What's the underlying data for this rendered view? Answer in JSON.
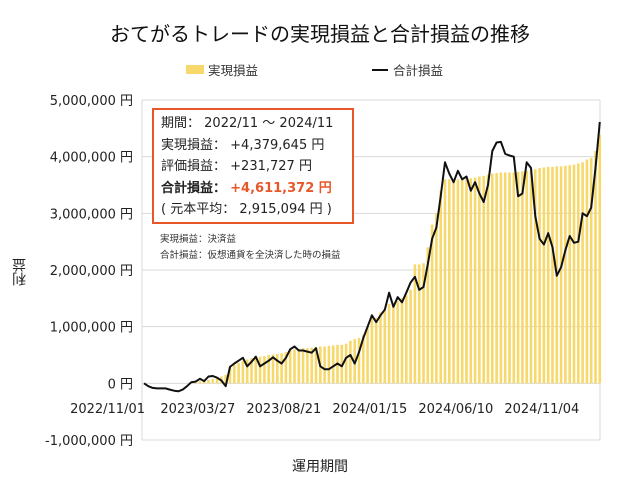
{
  "chart_data": {
    "type": "bar+line",
    "title": "おてがるトレードの実現損益と合計損益の推移",
    "xlabel": "運用期間",
    "ylabel": "利益",
    "ylim": [
      -1000000,
      5000000
    ],
    "yticks": [
      -1000000,
      0,
      1000000,
      2000000,
      3000000,
      4000000,
      5000000
    ],
    "ytick_labels": [
      "-1,000,000 円",
      "0 円",
      "1,000,000 円",
      "2,000,000 円",
      "3,000,000 円",
      "4,000,000 円",
      "5,000,000 円"
    ],
    "x_frequency": "weekly",
    "x_start": "2022/11/01",
    "xtick_labels": [
      {
        "label": "2022/11/01",
        "week": 0
      },
      {
        "label": "2023/03/27",
        "week": 21
      },
      {
        "label": "2023/08/21",
        "week": 41
      },
      {
        "label": "2024/01/15",
        "week": 61
      },
      {
        "label": "2024/06/10",
        "week": 81
      },
      {
        "label": "2024/11/04",
        "week": 101
      }
    ],
    "grid": true,
    "legend_position": "top",
    "colors": {
      "realized": "#F7D96B",
      "total": "#111111",
      "box_border": "#E8572A"
    },
    "series": [
      {
        "name": "実現損益",
        "type": "bar",
        "values": [
          0,
          0,
          0,
          0,
          0,
          0,
          0,
          0,
          0,
          0,
          0,
          20000,
          30000,
          40000,
          50000,
          60000,
          80000,
          100000,
          120000,
          150000,
          280000,
          330000,
          360000,
          400000,
          420000,
          440000,
          460000,
          470000,
          480000,
          500000,
          510000,
          520000,
          530000,
          550000,
          580000,
          600000,
          610000,
          620000,
          620000,
          630000,
          640000,
          650000,
          650000,
          660000,
          670000,
          680000,
          680000,
          700000,
          750000,
          780000,
          800000,
          850000,
          1000000,
          1150000,
          1150000,
          1250000,
          1300000,
          1400000,
          1400000,
          1450000,
          1500000,
          1550000,
          1650000,
          2100000,
          2100000,
          2120000,
          2400000,
          2800000,
          3000000,
          3400000,
          3600000,
          3600000,
          3600000,
          3600000,
          3600000,
          3600000,
          3620000,
          3630000,
          3650000,
          3660000,
          3680000,
          3700000,
          3710000,
          3720000,
          3720000,
          3720000,
          3720000,
          3730000,
          3740000,
          3750000,
          3760000,
          3780000,
          3800000,
          3810000,
          3820000,
          3820000,
          3830000,
          3830000,
          3840000,
          3850000,
          3860000,
          3880000,
          3900000,
          3950000,
          3980000,
          4100000,
          4379645
        ]
      },
      {
        "name": "合計損益",
        "type": "line",
        "values": [
          0,
          -50000,
          -80000,
          -90000,
          -90000,
          -90000,
          -110000,
          -130000,
          -140000,
          -110000,
          -50000,
          20000,
          30000,
          80000,
          40000,
          120000,
          130000,
          100000,
          50000,
          -50000,
          290000,
          350000,
          400000,
          450000,
          300000,
          380000,
          470000,
          300000,
          350000,
          400000,
          460000,
          400000,
          350000,
          450000,
          600000,
          650000,
          580000,
          580000,
          560000,
          540000,
          620000,
          300000,
          250000,
          250000,
          300000,
          350000,
          300000,
          450000,
          500000,
          350000,
          550000,
          800000,
          1000000,
          1200000,
          1080000,
          1200000,
          1300000,
          1600000,
          1350000,
          1520000,
          1430000,
          1600000,
          1780000,
          1880000,
          1650000,
          1700000,
          2100000,
          2550000,
          2750000,
          3300000,
          3900000,
          3700000,
          3550000,
          3750000,
          3600000,
          3650000,
          3400000,
          3550000,
          3350000,
          3200000,
          3500000,
          4100000,
          4250000,
          4260000,
          4050000,
          4020000,
          4000000,
          3300000,
          3350000,
          3900000,
          3800000,
          2950000,
          2550000,
          2450000,
          2650000,
          2400000,
          1900000,
          2050000,
          2350000,
          2600000,
          2480000,
          2500000,
          3000000,
          2950000,
          3100000,
          3800000,
          4611372
        ]
      }
    ]
  },
  "title": "おてがるトレードの実現損益と合計損益の推移",
  "legend": {
    "bar_label": "実現損益",
    "line_label": "合計損益"
  },
  "info_box": {
    "period_label": "期間：",
    "period_value": "2022/11 ～ 2024/11",
    "realized_label": "実現損益：",
    "realized_value": "+4,379,645 円",
    "unrealized_label": "評価損益：",
    "unrealized_value": "+231,727 円",
    "total_label": "合計損益：",
    "total_value": "+4,611,372 円",
    "principal_text": "( 元本平均： 2,915,094 円 )"
  },
  "notes": [
    "実現損益：決済益",
    "合計損益：仮想通貨を全決済した時の損益"
  ],
  "axes": {
    "ylabel": "利益",
    "xlabel": "運用期間"
  }
}
